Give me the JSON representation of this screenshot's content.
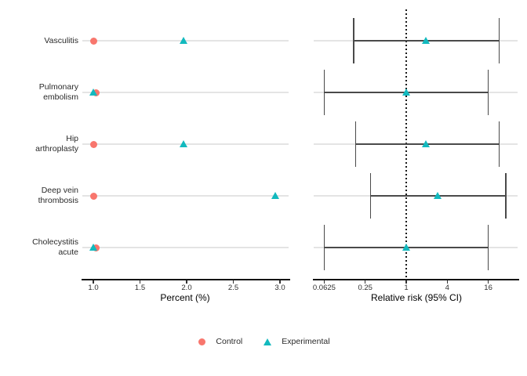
{
  "figure": {
    "background": "#FFFFFF",
    "legend": {
      "items": [
        {
          "label": "Control",
          "marker": "circle",
          "color": "#F8766D"
        },
        {
          "label": "Experimental",
          "marker": "triangle",
          "color": "#12B9BE"
        }
      ]
    },
    "colors": {
      "grid": "#E4E4E4",
      "ci": "#4A4A4A",
      "axis": "#141414",
      "reference_line": "#1A1A1A",
      "text": "#2A2A2A"
    }
  },
  "chart_data": [
    {
      "type": "scatter",
      "panel": "percent",
      "title": "",
      "xlabel": "Percent (%)",
      "ylabel": "",
      "scale": "linear",
      "xlim": [
        0.93,
        3.06
      ],
      "x_tick_labels": [
        "1.0",
        "1.5",
        "2.0",
        "2.5",
        "3.0"
      ],
      "x_tick_values": [
        1.0,
        1.5,
        2.0,
        2.5,
        3.0
      ],
      "grid": true,
      "legend_position": "bottom",
      "categories": [
        "Vasculitis",
        "Pulmonary embolism",
        "Hip arthroplasty",
        "Deep vein thrombosis",
        "Cholecystitis acute"
      ],
      "category_label_lines": [
        [
          "Vasculitis"
        ],
        [
          "Pulmonary",
          "embolism"
        ],
        [
          "Hip",
          "arthroplasty"
        ],
        [
          "Deep vein",
          "thrombosis"
        ],
        [
          "Cholecystitis",
          "acute"
        ]
      ],
      "series": [
        {
          "name": "Control",
          "marker": "circle",
          "color": "#F8766D",
          "values": [
            1.0,
            1.03,
            1.0,
            1.0,
            1.03
          ]
        },
        {
          "name": "Experimental",
          "marker": "triangle",
          "color": "#12B9BE",
          "values": [
            1.97,
            1.0,
            1.97,
            2.95,
            1.0
          ]
        }
      ]
    },
    {
      "type": "scatter",
      "panel": "relative-risk",
      "title": "",
      "xlabel": "Relative risk (95% CI)",
      "ylabel": "",
      "scale": "log",
      "log_base": 4,
      "xlim": [
        0.043,
        44
      ],
      "x_tick_labels": [
        "0.0625",
        "0.25",
        "1",
        "4",
        "16"
      ],
      "x_tick_values": [
        0.0625,
        0.25,
        1,
        4,
        16
      ],
      "grid": true,
      "reference_line_x": 1,
      "categories": [
        "Vasculitis",
        "Pulmonary embolism",
        "Hip arthroplasty",
        "Deep vein thrombosis",
        "Cholecystitis acute"
      ],
      "series": [
        {
          "name": "Experimental",
          "marker": "triangle",
          "color": "#12B9BE",
          "values": [
            1.95,
            1.0,
            1.95,
            2.95,
            1.0
          ],
          "ci_lower": [
            0.17,
            0.0625,
            0.18,
            0.3,
            0.0625
          ],
          "ci_upper": [
            23,
            16,
            23,
            29,
            16
          ]
        }
      ]
    }
  ]
}
